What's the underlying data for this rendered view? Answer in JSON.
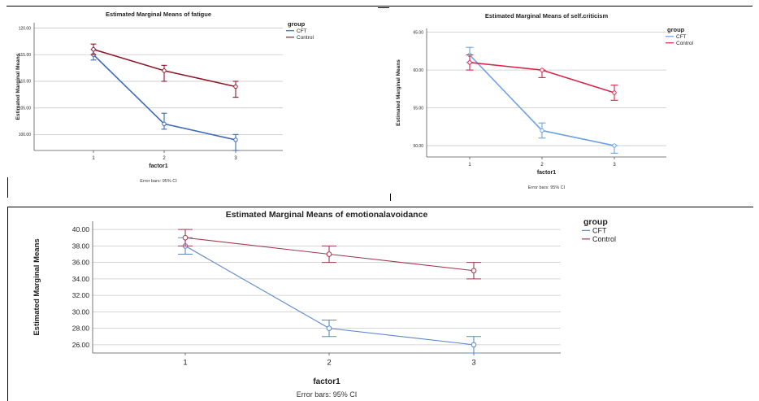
{
  "chart_data": [
    {
      "type": "line",
      "title": "Estimated Marginal Means of fatigue",
      "xlabel": "factor1",
      "ylabel": "Estimated Marginal Means",
      "categories": [
        "1",
        "2",
        "3"
      ],
      "ylim": [
        97,
        121
      ],
      "yticks": [
        "120.00",
        "115.00",
        "110.00",
        "105.00",
        "100.00"
      ],
      "ytick_values": [
        120,
        115,
        110,
        105,
        100
      ],
      "grid": true,
      "legend_title": "group",
      "legend_position": "top-right",
      "footnote": "Error bars: 95% CI",
      "series": [
        {
          "name": "CFT",
          "color": "#3D6BB5",
          "values": [
            115,
            102,
            99
          ],
          "ci_low": [
            114,
            101,
            97
          ],
          "ci_high": [
            116,
            104,
            100
          ]
        },
        {
          "name": "Control",
          "color": "#8B1A2B",
          "values": [
            116,
            112,
            109
          ],
          "ci_low": [
            115,
            110,
            107
          ],
          "ci_high": [
            117,
            113,
            110
          ]
        }
      ]
    },
    {
      "type": "line",
      "title": "Estimated Marginal Means of self.criticism",
      "xlabel": "factor1",
      "ylabel": "Estimated Marginal Means",
      "categories": [
        "1",
        "2",
        "3"
      ],
      "ylim": [
        48.5,
        65.5
      ],
      "yticks": [
        "65.00",
        "60.00",
        "55.00",
        "50.00"
      ],
      "ytick_values": [
        65,
        60,
        55,
        50
      ],
      "grid": true,
      "legend_title": "group",
      "legend_position": "top-right",
      "footnote": "Error bars: 95% CI",
      "series": [
        {
          "name": "CFT",
          "color": "#6FA3E0",
          "values": [
            62,
            52,
            50
          ],
          "ci_low": [
            61,
            51,
            49
          ],
          "ci_high": [
            63,
            53,
            50
          ]
        },
        {
          "name": "Control",
          "color": "#D8244A",
          "values": [
            61,
            60,
            57
          ],
          "ci_low": [
            60,
            59,
            56
          ],
          "ci_high": [
            62,
            60,
            58
          ]
        }
      ]
    },
    {
      "type": "line",
      "title": "Estimated Marginal Means of emotionalavoidance",
      "xlabel": "factor1",
      "ylabel": "Estimated Marginal Means",
      "categories": [
        "1",
        "2",
        "3"
      ],
      "ylim": [
        25,
        41
      ],
      "yticks": [
        "40.00",
        "38.00",
        "36.00",
        "34.00",
        "32.00",
        "30.00",
        "28.00",
        "26.00"
      ],
      "ytick_values": [
        40,
        38,
        36,
        34,
        32,
        30,
        28,
        26
      ],
      "grid": true,
      "legend_title": "group",
      "legend_position": "top-right",
      "footnote": "Error bars: 95% CI",
      "series": [
        {
          "name": "CFT",
          "color": "#5C88C8",
          "values": [
            38,
            28,
            26
          ],
          "ci_low": [
            37,
            27,
            25
          ],
          "ci_high": [
            39,
            29,
            27
          ]
        },
        {
          "name": "Control",
          "color": "#9E3A4C",
          "values": [
            39,
            37,
            35
          ],
          "ci_low": [
            38,
            36,
            34
          ],
          "ci_high": [
            40,
            38,
            36
          ]
        }
      ]
    }
  ]
}
